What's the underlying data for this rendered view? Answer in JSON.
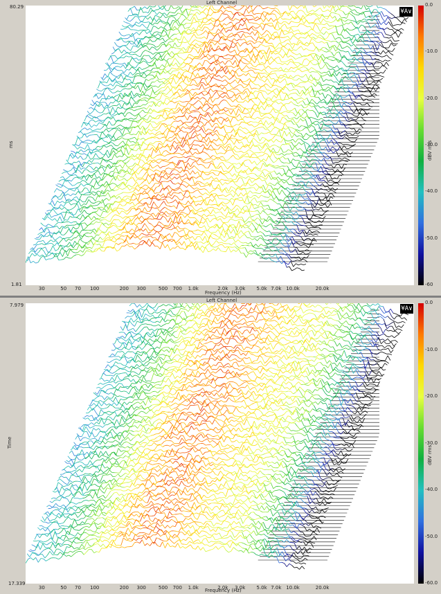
{
  "colors": {
    "panel_bg": "#d4d0c8",
    "plot_bg": "#ffffff",
    "hatch": "#000000"
  },
  "colorbar_gradient": [
    "#d40000",
    "#ff7a00",
    "#ffd800",
    "#e8ff40",
    "#66dd30",
    "#10b040",
    "#22c0c0",
    "#3070e0",
    "#1010a0",
    "#000000"
  ],
  "chart_data": [
    {
      "type": "heatmap",
      "subtype": "waterfall-3d",
      "title": "Left Channel",
      "xlabel": "Frequency (Hz)",
      "ylabel": "ms",
      "y_top_label": "80.29",
      "y_bottom_label": "1.81",
      "x_tick_labels": [
        "30",
        "50",
        "70",
        "100",
        "200",
        "300",
        "500",
        "700",
        "1.0k",
        "2.0k",
        "3.0k",
        "5.0k",
        "7.0k",
        "10.0k",
        "20.0k"
      ],
      "x_ticks_hz": [
        30,
        50,
        70,
        100,
        200,
        300,
        500,
        700,
        1000,
        2000,
        3000,
        5000,
        7000,
        10000,
        20000
      ],
      "colorbar_label": "dBV rms",
      "colorbar_ticks": [
        "0.0",
        "-10.0",
        "-20.0",
        "-30.0",
        "-40.0",
        "-50.0",
        "-60"
      ],
      "colorbar_range": [
        -60,
        0
      ],
      "button_icon": "waterfall-settings-icon",
      "button_glyph": "¥A∨"
    },
    {
      "type": "heatmap",
      "subtype": "waterfall-3d",
      "title": "Left Channel",
      "xlabel": "Frequency (Hz)",
      "ylabel": "Time",
      "y_top_label": "7.979",
      "y_bottom_label": "17.339",
      "x_tick_labels": [
        "30",
        "50",
        "70",
        "100",
        "200",
        "300",
        "500",
        "700",
        "1.0k",
        "2.0k",
        "3.0k",
        "5.0k",
        "7.0k",
        "10.0k",
        "20.0k"
      ],
      "x_ticks_hz": [
        30,
        50,
        70,
        100,
        200,
        300,
        500,
        700,
        1000,
        2000,
        3000,
        5000,
        7000,
        10000,
        20000
      ],
      "colorbar_label": "dBV rms",
      "colorbar_ticks": [
        "0.0",
        "-10.0",
        "-20.0",
        "-30.0",
        "-40.0",
        "-50.0",
        "-60.0"
      ],
      "colorbar_range": [
        -60,
        0
      ],
      "button_icon": "waterfall-settings-icon",
      "button_glyph": "¥A∨"
    }
  ]
}
